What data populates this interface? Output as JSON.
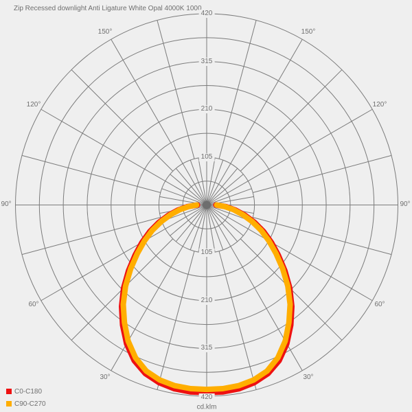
{
  "title": "Zip Recessed downlight Anti Ligature White Opal 4000K 1000",
  "unit_label": "cd.klm",
  "colors": {
    "background": "#efefef",
    "grid": "#7b7b7b",
    "center_dot": "#6e6e6e",
    "text": "#6f6f6f",
    "c0_c180": "#ee1111",
    "c90_c270": "#ffae00"
  },
  "legend": [
    {
      "label": "C0-C180",
      "color": "#ee1111"
    },
    {
      "label": "C90-C270",
      "color": "#ffae00"
    }
  ],
  "chart_data": {
    "type": "polar-photometric",
    "title": "Zip Recessed downlight Anti Ligature White Opal 4000K 1000",
    "unit": "cd.klm",
    "radial_max": 420,
    "ring_step": 52.5,
    "radial_ticks": [
      "105",
      "210",
      "315",
      "420"
    ],
    "angle_labels": [
      "150°",
      "120°",
      "90°",
      "60°",
      "30°"
    ],
    "grid": {
      "inner_spoke_step_deg": 10,
      "outer_spoke_step_deg": 15,
      "inner_spoke_limit_value": 105,
      "rings": [
        52.5,
        105,
        157.5,
        210,
        262.5,
        315,
        367.5,
        420
      ]
    },
    "angles_deg": [
      0,
      5,
      10,
      15,
      20,
      25,
      30,
      35,
      40,
      45,
      50,
      55,
      60,
      65,
      70,
      75,
      80,
      85,
      90
    ],
    "series": [
      {
        "name": "C0-C180",
        "color": "#ee1111",
        "values": [
          412,
          412,
          410,
          404,
          394,
          377,
          352,
          322,
          291,
          258,
          224,
          192,
          164,
          138,
          112,
          87,
          64,
          43,
          20
        ]
      },
      {
        "name": "C90-C270",
        "color": "#ffae00",
        "values": [
          405,
          405,
          403,
          398,
          388,
          370,
          345,
          315,
          285,
          252,
          218,
          186,
          158,
          132,
          106,
          82,
          60,
          40,
          22
        ]
      }
    ],
    "symmetric": true,
    "orientation": "0-degrees-down"
  }
}
